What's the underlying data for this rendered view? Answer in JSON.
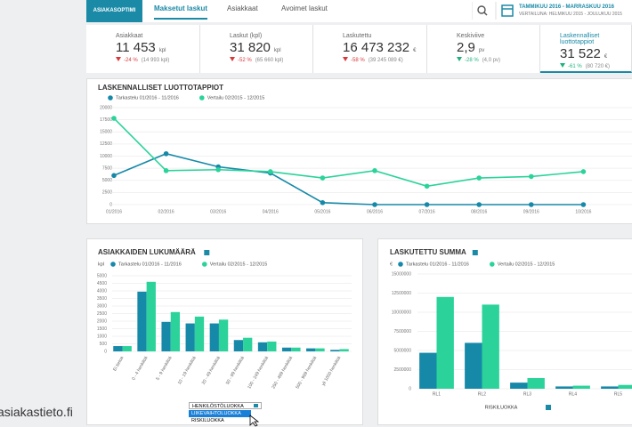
{
  "header": {
    "logo": "ASIAKASOPTIMI",
    "tabs": [
      "Maksetut laskut",
      "Asiakkaat",
      "Avoimet laskut"
    ],
    "period": "TAMMIKUU 2016 - MARRASKUU 2016",
    "comparison": "VERTAILUNA: HELMIKUU 2015 - JOULUKUU 2015"
  },
  "kpis": [
    {
      "label": "Asiakkaat",
      "value": "11 453",
      "unit": "kpl",
      "change": "-24 %",
      "previous": "(14 993 kpl)"
    },
    {
      "label": "Laskut (kpl)",
      "value": "31 820",
      "unit": "kpl",
      "change": "-52 %",
      "previous": "(65 660 kpl)"
    },
    {
      "label": "Laskutettu",
      "value": "16 473 232",
      "unit": "€",
      "change": "-58 %",
      "previous": "(39 245 089 €)"
    },
    {
      "label": "Keskiviive",
      "value": "2,9",
      "unit": "pv",
      "change": "-28 %",
      "previous": "(4,0 pv)"
    },
    {
      "label": "Laskennalliset luottotappiot",
      "value": "31 522",
      "unit": "€",
      "change": "-61 %",
      "previous": "(80 720 €)"
    }
  ],
  "chart_data": [
    {
      "type": "line",
      "title": "LASKENNALLISET LUOTTOTAPPIOT",
      "categories": [
        "01/2016",
        "02/2016",
        "03/2016",
        "04/2016",
        "05/2016",
        "06/2016",
        "07/2016",
        "08/2016",
        "09/2016",
        "10/2016"
      ],
      "series": [
        {
          "name": "Tarkastelu 01/2016 - 11/2016",
          "color": "#1689a9",
          "values": [
            6000,
            10500,
            7800,
            6500,
            400,
            0,
            0,
            0,
            0,
            0
          ]
        },
        {
          "name": "Vertailu 02/2015 - 12/2015",
          "color": "#2bd39b",
          "values": [
            17800,
            7000,
            7200,
            6800,
            5500,
            7000,
            3800,
            5500,
            5800,
            6800
          ]
        }
      ],
      "ylim": [
        0,
        20000
      ],
      "yticks": [
        0,
        2500,
        5000,
        7500,
        10000,
        12500,
        15000,
        17500,
        20000
      ],
      "grid": true
    },
    {
      "type": "bar",
      "title": "ASIAKKAIDEN LUKUMÄÄRÄ",
      "y_unit": "kpl",
      "categories": [
        "Ei tietoa",
        "0 - 4 henkilöä",
        "5 - 9 henkilöä",
        "10 - 19 henkilöä",
        "20 - 49 henkilöä",
        "50 - 99 henkilöä",
        "100 - 249 henkilöä",
        "250 - 499 henkilöä",
        "500 - 999 henkilöä",
        "yli 1000 henkilöä"
      ],
      "series": [
        {
          "name": "Tarkastelu 01/2016 - 11/2016",
          "color": "#1689a9",
          "values": [
            350,
            3950,
            1950,
            1850,
            1850,
            750,
            600,
            250,
            200,
            100
          ]
        },
        {
          "name": "Vertailu 02/2015 - 12/2015",
          "color": "#2bd39b",
          "values": [
            350,
            4600,
            2600,
            2300,
            2100,
            900,
            650,
            250,
            200,
            150
          ]
        }
      ],
      "ylim": [
        0,
        5000
      ],
      "yticks": [
        0,
        500,
        1000,
        1500,
        2000,
        2500,
        3000,
        3500,
        4000,
        4500,
        5000
      ],
      "grid": true,
      "dropdown": {
        "selected": "HENKILÖSTÖLUOKKA",
        "options": [
          "LIIKEVAIHTOLUOKKA",
          "RISKILUOKKA"
        ]
      }
    },
    {
      "type": "bar",
      "title": "LASKUTETTU SUMMA",
      "y_unit": "€",
      "xlabel": "RISKILUOKKA",
      "categories": [
        "RL1",
        "RL2",
        "RL3",
        "RL4",
        "RL5"
      ],
      "series": [
        {
          "name": "Tarkastelu 01/2016 - 11/2016",
          "color": "#1689a9",
          "values": [
            4700000,
            6000000,
            800000,
            300000,
            300000
          ]
        },
        {
          "name": "Vertailu 02/2015 - 12/2015",
          "color": "#2bd39b",
          "values": [
            12000000,
            11000000,
            1400000,
            400000,
            500000
          ]
        }
      ],
      "ylim": [
        0,
        15000000
      ],
      "yticks": [
        0,
        2500000,
        5000000,
        7500000,
        10000000,
        12500000,
        15000000
      ],
      "grid": true
    }
  ],
  "footer": "asiakastieto.fi"
}
